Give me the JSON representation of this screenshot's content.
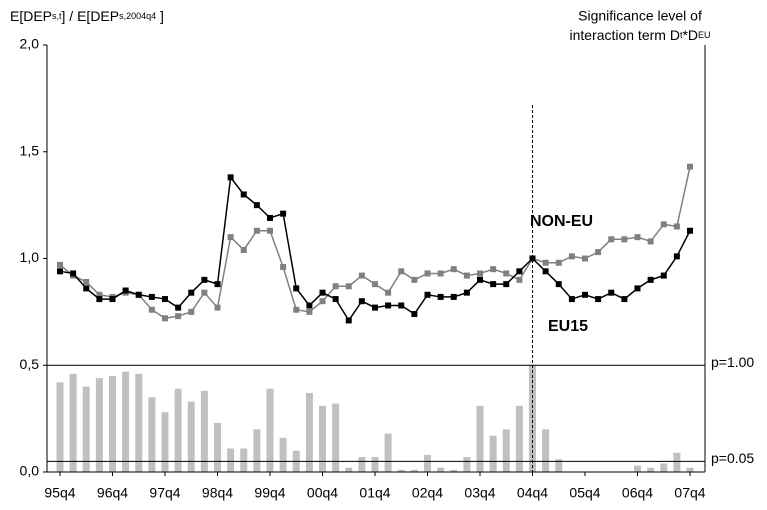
{
  "chart_data": {
    "type": "line",
    "y_label_parts": [
      "E[DEP",
      "s,t",
      "] / E[DEP",
      "s,2004q4",
      " ]"
    ],
    "right_title_line1": "Significance level of",
    "right_title_parts": [
      "interaction term D",
      "t",
      "*D",
      "EU"
    ],
    "categories": [
      "95q4",
      null,
      null,
      null,
      "96q4",
      null,
      null,
      null,
      "97q4",
      null,
      null,
      null,
      "98q4",
      null,
      null,
      null,
      "99q4",
      null,
      null,
      null,
      "00q4",
      null,
      null,
      null,
      "01q4",
      null,
      null,
      null,
      "02q4",
      null,
      null,
      null,
      "03q4",
      null,
      null,
      null,
      "04q4",
      null,
      null,
      null,
      "05q4",
      null,
      null,
      null,
      "06q4",
      null,
      null,
      null,
      "07q4"
    ],
    "series": [
      {
        "name": "EU15",
        "color": "#000000",
        "values": [
          0.94,
          0.93,
          0.86,
          0.81,
          0.81,
          0.85,
          0.83,
          0.82,
          0.81,
          0.77,
          0.84,
          0.9,
          0.88,
          1.38,
          1.3,
          1.25,
          1.19,
          1.21,
          0.86,
          0.78,
          0.84,
          0.81,
          0.71,
          0.8,
          0.77,
          0.78,
          0.78,
          0.74,
          0.83,
          0.82,
          0.82,
          0.84,
          0.9,
          0.88,
          0.88,
          0.94,
          1.0,
          0.94,
          0.88,
          0.81,
          0.83,
          0.81,
          0.84,
          0.81,
          0.86,
          0.9,
          0.92,
          1.01,
          1.13
        ]
      },
      {
        "name": "NON-EU",
        "color": "#808080",
        "values": [
          0.97,
          0.92,
          0.89,
          0.83,
          0.82,
          0.84,
          0.83,
          0.76,
          0.72,
          0.73,
          0.75,
          0.84,
          0.77,
          1.1,
          1.04,
          1.13,
          1.13,
          0.96,
          0.76,
          0.75,
          0.8,
          0.87,
          0.87,
          0.92,
          0.88,
          0.84,
          0.94,
          0.9,
          0.93,
          0.93,
          0.95,
          0.92,
          0.93,
          0.95,
          0.93,
          0.9,
          1.0,
          0.98,
          0.98,
          1.01,
          1.0,
          1.03,
          1.09,
          1.09,
          1.1,
          1.08,
          1.16,
          1.15,
          1.43
        ]
      }
    ],
    "significance_bars": {
      "color": "#c0c0c0",
      "values": [
        0.42,
        0.46,
        0.4,
        0.44,
        0.45,
        0.47,
        0.46,
        0.35,
        0.28,
        0.39,
        0.33,
        0.38,
        0.23,
        0.11,
        0.11,
        0.2,
        0.39,
        0.16,
        0.1,
        0.37,
        0.31,
        0.32,
        0.02,
        0.07,
        0.07,
        0.18,
        0.01,
        0.01,
        0.08,
        0.02,
        0.01,
        0.07,
        0.31,
        0.17,
        0.2,
        0.31,
        0.5,
        0.2,
        0.06,
        0,
        0,
        0,
        0,
        0,
        0.03,
        0.02,
        0.04,
        0.09,
        0.02
      ]
    },
    "reference_lines": [
      {
        "value": 0.5,
        "label": "p=1.00"
      },
      {
        "value": 0.05,
        "label": "p=0.05"
      }
    ],
    "marker_line_category": 36,
    "ylim": [
      0,
      2
    ],
    "yticks": [
      {
        "value": 0,
        "label": "0,0"
      },
      {
        "value": 0.5,
        "label": "0,5"
      },
      {
        "value": 1,
        "label": "1,0"
      },
      {
        "value": 1.5,
        "label": "1,5"
      },
      {
        "value": 2,
        "label": "2,0"
      }
    ]
  }
}
